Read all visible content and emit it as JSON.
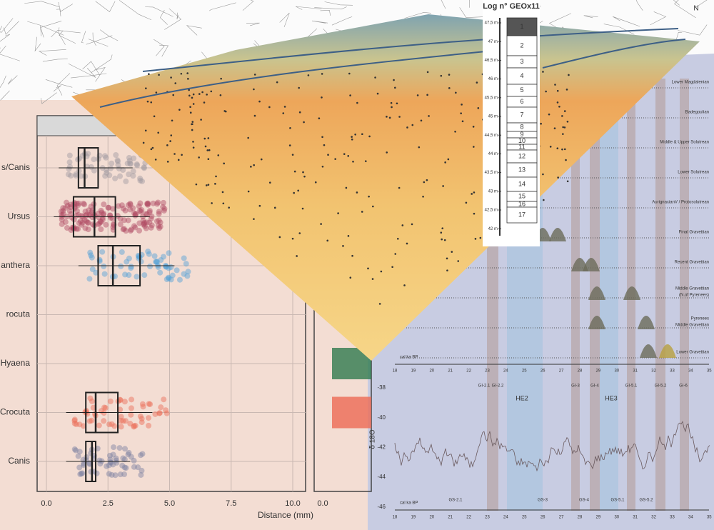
{
  "map": {
    "north": "N"
  },
  "log": {
    "title": "Log n° GEOx11",
    "depths": [
      "47,5 m",
      "47 m",
      "46,5 m",
      "46 m",
      "45,5 m",
      "45 m",
      "44,5 m",
      "44 m",
      "43,5 m",
      "43 m",
      "42,5 m",
      "42 m"
    ],
    "units": [
      "1",
      "2",
      "3",
      "4",
      "5",
      "6",
      "7",
      "8",
      "9",
      "10",
      "11",
      "12",
      "13",
      "14",
      "15",
      "16",
      "17"
    ]
  },
  "boxplot": {
    "categories": [
      "s/Canis",
      "Ursus",
      "anthera",
      "rocuta",
      "Hyaena",
      "Crocuta",
      "Canis"
    ],
    "xticks": [
      "0.0",
      "2.5",
      "5.0",
      "7.5",
      "10.0"
    ],
    "second_panel_xtick": "0.0",
    "xlabel": "Distance (mm)"
  },
  "chronology": {
    "phases": [
      [
        "Lower Magdalenian"
      ],
      [
        "Badegoulian"
      ],
      [
        "Middle & Upper Solutrean"
      ],
      [
        "Lower Solutrean"
      ],
      [
        "AurignacianV / Protosolutrean"
      ],
      [
        "Final Gravettian"
      ],
      [
        "Recent Gravettian"
      ],
      [
        "Middle Gravettian",
        "(N.of Pyrenees)"
      ],
      [
        "Pyrenees",
        "Middle Gravettian"
      ],
      [
        "Lower Gravettian"
      ]
    ],
    "axis_label": "cal ka BP",
    "ticks": [
      "18",
      "19",
      "20",
      "21",
      "22",
      "23",
      "24",
      "25",
      "26",
      "27",
      "28",
      "29",
      "30",
      "31",
      "32",
      "33",
      "34",
      "35"
    ]
  },
  "isotope": {
    "ylabel": "δ 18O",
    "yticks": [
      "-38",
      "-40",
      "-42",
      "-44",
      "-46"
    ],
    "interstadials": [
      "GI-2.1",
      "GI-2.2",
      "GI-3",
      "GI-4",
      "GI-5.1",
      "GI-5.2",
      "GI-6"
    ],
    "stadials": [
      "GS-2.1",
      "GS-3",
      "GS-4",
      "GS-5.1",
      "GS-5.2"
    ],
    "heinrich": [
      "HE2",
      "HE3"
    ],
    "axis_label": "cal ka BP",
    "ticks": [
      "18",
      "19",
      "20",
      "21",
      "22",
      "23",
      "24",
      "25",
      "26",
      "27",
      "28",
      "29",
      "30",
      "31",
      "32",
      "33",
      "34",
      "35"
    ]
  }
}
